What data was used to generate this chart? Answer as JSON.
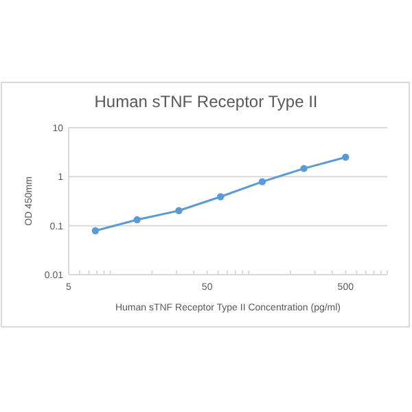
{
  "chart_data": {
    "type": "line",
    "title": "Human sTNF Receptor Type II",
    "xlabel": "Human sTNF Receptor Type II Concentration (pg/ml)",
    "ylabel": "OD 450mm",
    "x": [
      7.8,
      15.6,
      31.25,
      62.5,
      125,
      250,
      500
    ],
    "series": [
      {
        "color": "#5b9bd5",
        "values": [
          0.079,
          0.132,
          0.203,
          0.39,
          0.79,
          1.47,
          2.5
        ]
      }
    ],
    "log": "xy",
    "xlim": [
      5,
      1000
    ],
    "ylim": [
      0.01,
      10
    ],
    "xticks": [
      5,
      {
        "value": 6,
        "label": null
      },
      {
        "value": 7,
        "label": null
      },
      {
        "value": 8,
        "label": null
      },
      {
        "value": 9,
        "label": null
      },
      {
        "value": 10,
        "label": null
      },
      {
        "value": 20,
        "label": null
      },
      {
        "value": 30,
        "label": null
      },
      {
        "value": 40,
        "label": null
      },
      50,
      {
        "value": 60,
        "label": null
      },
      {
        "value": 70,
        "label": null
      },
      {
        "value": 80,
        "label": null
      },
      {
        "value": 90,
        "label": null
      },
      {
        "value": 100,
        "label": null
      },
      {
        "value": 200,
        "label": null
      },
      {
        "value": 300,
        "label": null
      },
      {
        "value": 400,
        "label": null
      },
      500,
      {
        "value": 600,
        "label": null
      },
      {
        "value": 700,
        "label": null
      },
      {
        "value": 800,
        "label": null
      },
      {
        "value": 900,
        "label": null
      },
      {
        "value": 1000,
        "label": null
      }
    ],
    "yticks": [
      0.01,
      0.1,
      1,
      10
    ],
    "grid": "y",
    "marker": "circle",
    "line_style": "solid"
  }
}
